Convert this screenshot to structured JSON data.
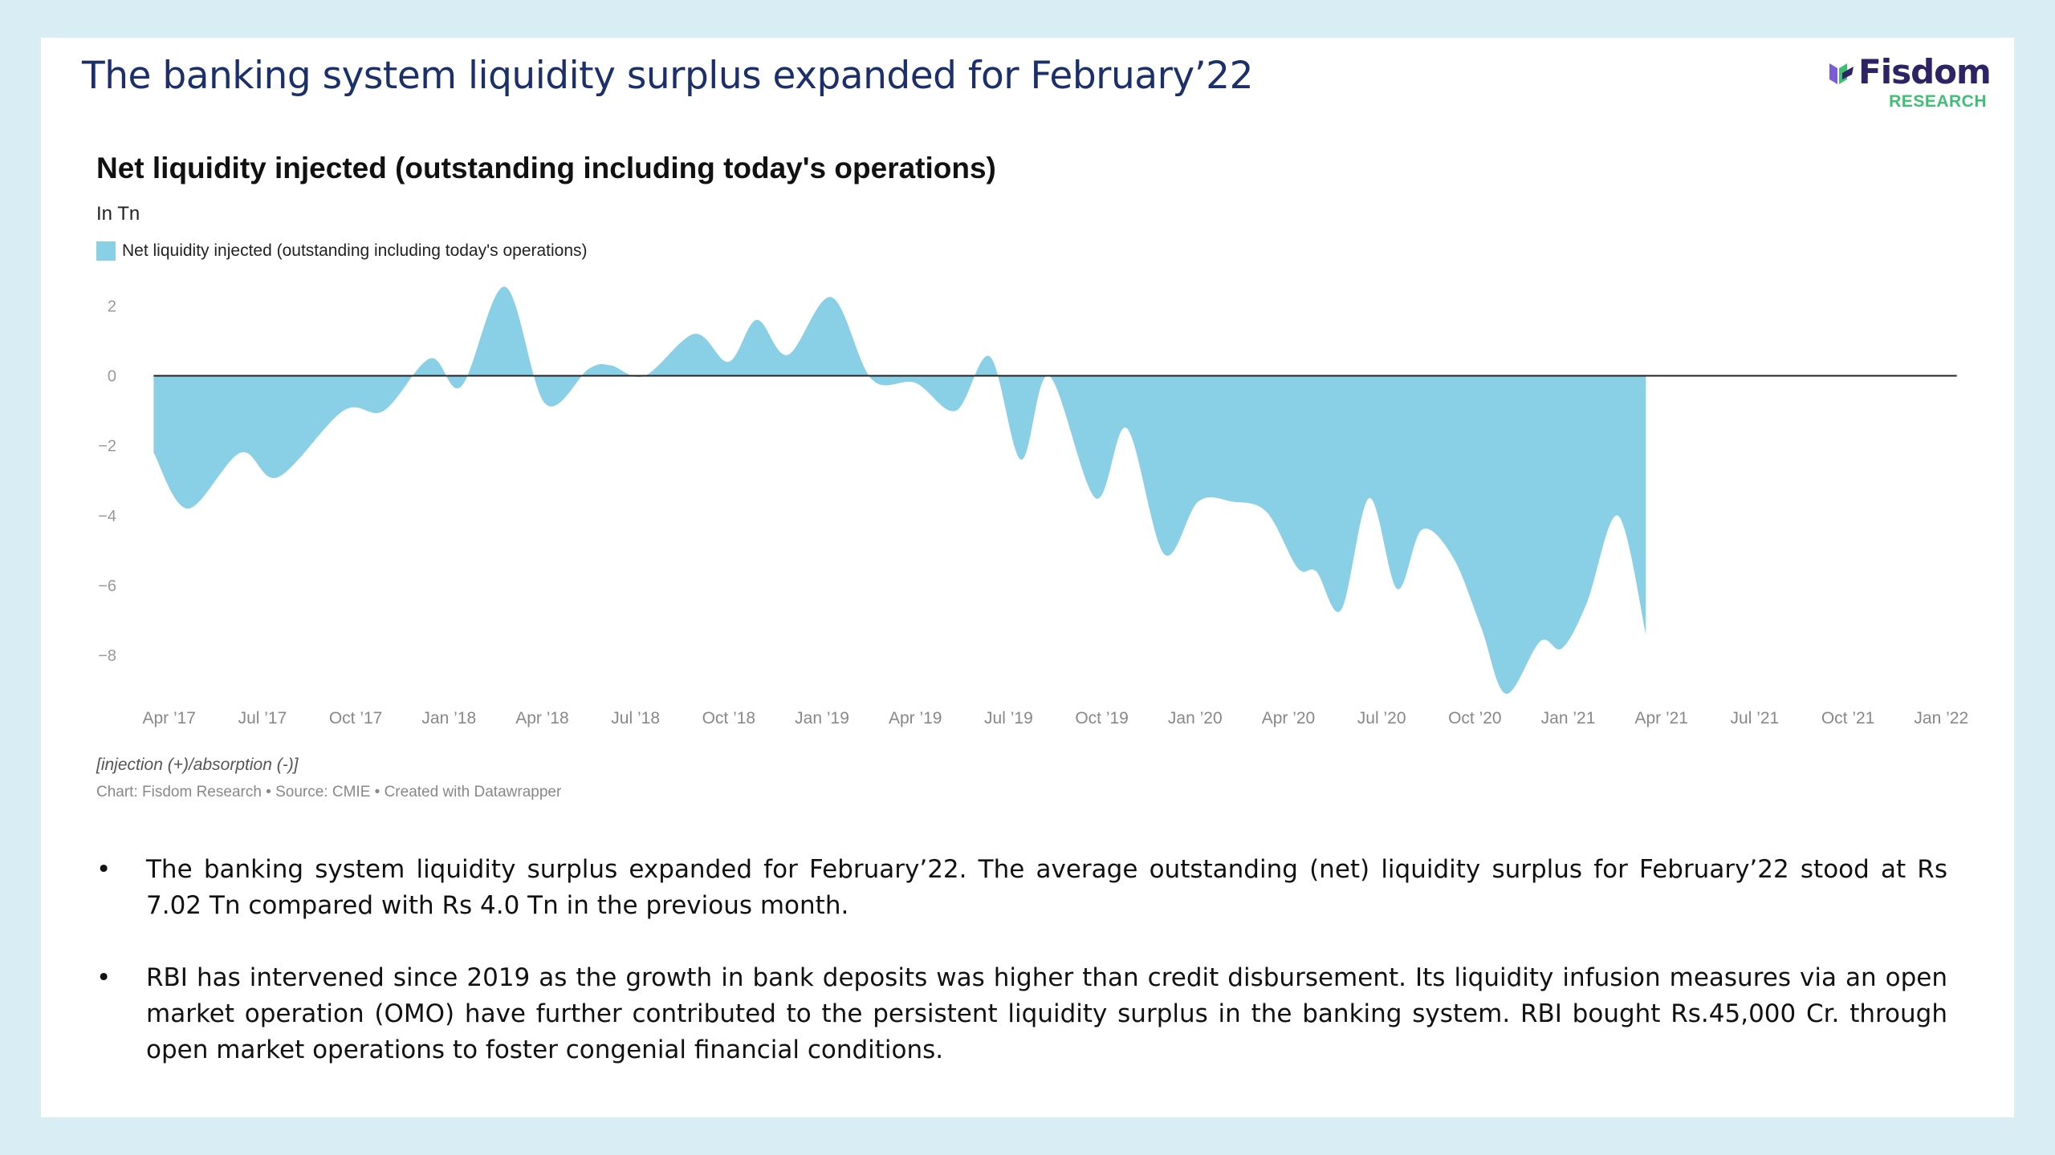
{
  "slide": {
    "title": "The banking system liquidity surplus expanded for February’22",
    "logo": {
      "name": "Fisdom",
      "subtitle": "RESEARCH",
      "primary_color": "#2d2466",
      "accent_color": "#3fbf74"
    },
    "bullets": [
      "The banking system liquidity surplus expanded for February’22. The average outstanding (net) liquidity surplus for February’22 stood at Rs 7.02 Tn compared with Rs 4.0 Tn in the previous month.",
      "RBI has intervened since 2019 as the growth in bank deposits was higher than credit disbursement. Its liquidity infusion measures via an open market operation (OMO) have further contributed to the persistent liquidity surplus in the banking system. RBI bought Rs.45,000 Cr. through open market operations to foster congenial financial conditions."
    ],
    "bullet_symbol": "•"
  },
  "chart_data": {
    "type": "area",
    "title": "Net liquidity injected (outstanding including today's operations)",
    "unit_label": "In Tn",
    "legend": [
      "Net liquidity injected (outstanding including today's operations)"
    ],
    "color": "#89cfe5",
    "note": "[injection (+)/absorption (-)]",
    "source": "Chart: Fisdom Research • Source: CMIE • Created with Datawrapper",
    "xlim": [
      0,
      59
    ],
    "ylim": [
      -9.4,
      2.4
    ],
    "y_ticks": [
      2,
      0,
      -2,
      -4,
      -6,
      -8
    ],
    "y_tick_labels": [
      "2",
      "0",
      "−2",
      "−4",
      "−6",
      "−8"
    ],
    "x_ticks": [
      {
        "pos": 1,
        "label": "Apr ’17"
      },
      {
        "pos": 4,
        "label": "Jul ’17"
      },
      {
        "pos": 7,
        "label": "Oct ’17"
      },
      {
        "pos": 10,
        "label": "Jan ’18"
      },
      {
        "pos": 13,
        "label": "Apr ’18"
      },
      {
        "pos": 16,
        "label": "Jul ’18"
      },
      {
        "pos": 19,
        "label": "Oct ’18"
      },
      {
        "pos": 22,
        "label": "Jan ’19"
      },
      {
        "pos": 25,
        "label": "Apr ’19"
      },
      {
        "pos": 28,
        "label": "Jul ’19"
      },
      {
        "pos": 31,
        "label": "Oct ’19"
      },
      {
        "pos": 34,
        "label": "Jan ’20"
      },
      {
        "pos": 37,
        "label": "Apr ’20"
      },
      {
        "pos": 40,
        "label": "Jul ’20"
      },
      {
        "pos": 43,
        "label": "Oct ’20"
      },
      {
        "pos": 46,
        "label": "Jan ’21"
      },
      {
        "pos": 49,
        "label": "Apr ’21"
      },
      {
        "pos": 52,
        "label": "Jul ’21"
      },
      {
        "pos": 55,
        "label": "Oct ’21"
      },
      {
        "pos": 58,
        "label": "Jan ’22"
      }
    ],
    "points": [
      [
        0.5,
        -2.2
      ],
      [
        1.6,
        -3.8
      ],
      [
        3.3,
        -2.2
      ],
      [
        4.5,
        -2.9
      ],
      [
        6.6,
        -1.0
      ],
      [
        7.9,
        -1.0
      ],
      [
        9.4,
        0.5
      ],
      [
        10.4,
        -0.3
      ],
      [
        11.8,
        2.55
      ],
      [
        13.1,
        -0.8
      ],
      [
        14.5,
        0.2
      ],
      [
        15.2,
        0.3
      ],
      [
        16.3,
        0.0
      ],
      [
        17.9,
        1.2
      ],
      [
        19.0,
        0.4
      ],
      [
        19.9,
        1.6
      ],
      [
        20.9,
        0.6
      ],
      [
        22.3,
        2.25
      ],
      [
        23.6,
        -0.1
      ],
      [
        25.0,
        -0.2
      ],
      [
        26.3,
        -1.0
      ],
      [
        27.4,
        0.55
      ],
      [
        28.4,
        -2.4
      ],
      [
        29.3,
        0.0
      ],
      [
        30.8,
        -3.5
      ],
      [
        31.8,
        -1.5
      ],
      [
        33.0,
        -5.1
      ],
      [
        34.1,
        -3.6
      ],
      [
        35.2,
        -3.6
      ],
      [
        36.3,
        -3.9
      ],
      [
        37.3,
        -5.5
      ],
      [
        37.9,
        -5.6
      ],
      [
        38.7,
        -6.7
      ],
      [
        39.6,
        -3.5
      ],
      [
        40.5,
        -6.1
      ],
      [
        41.3,
        -4.4
      ],
      [
        42.3,
        -5.2
      ],
      [
        43.2,
        -7.2
      ],
      [
        44.0,
        -9.1
      ],
      [
        45.1,
        -7.6
      ],
      [
        45.8,
        -7.8
      ],
      [
        46.6,
        -6.5
      ],
      [
        47.6,
        -4.0
      ],
      [
        48.5,
        -7.4
      ]
    ],
    "end_x": 58.5
  }
}
